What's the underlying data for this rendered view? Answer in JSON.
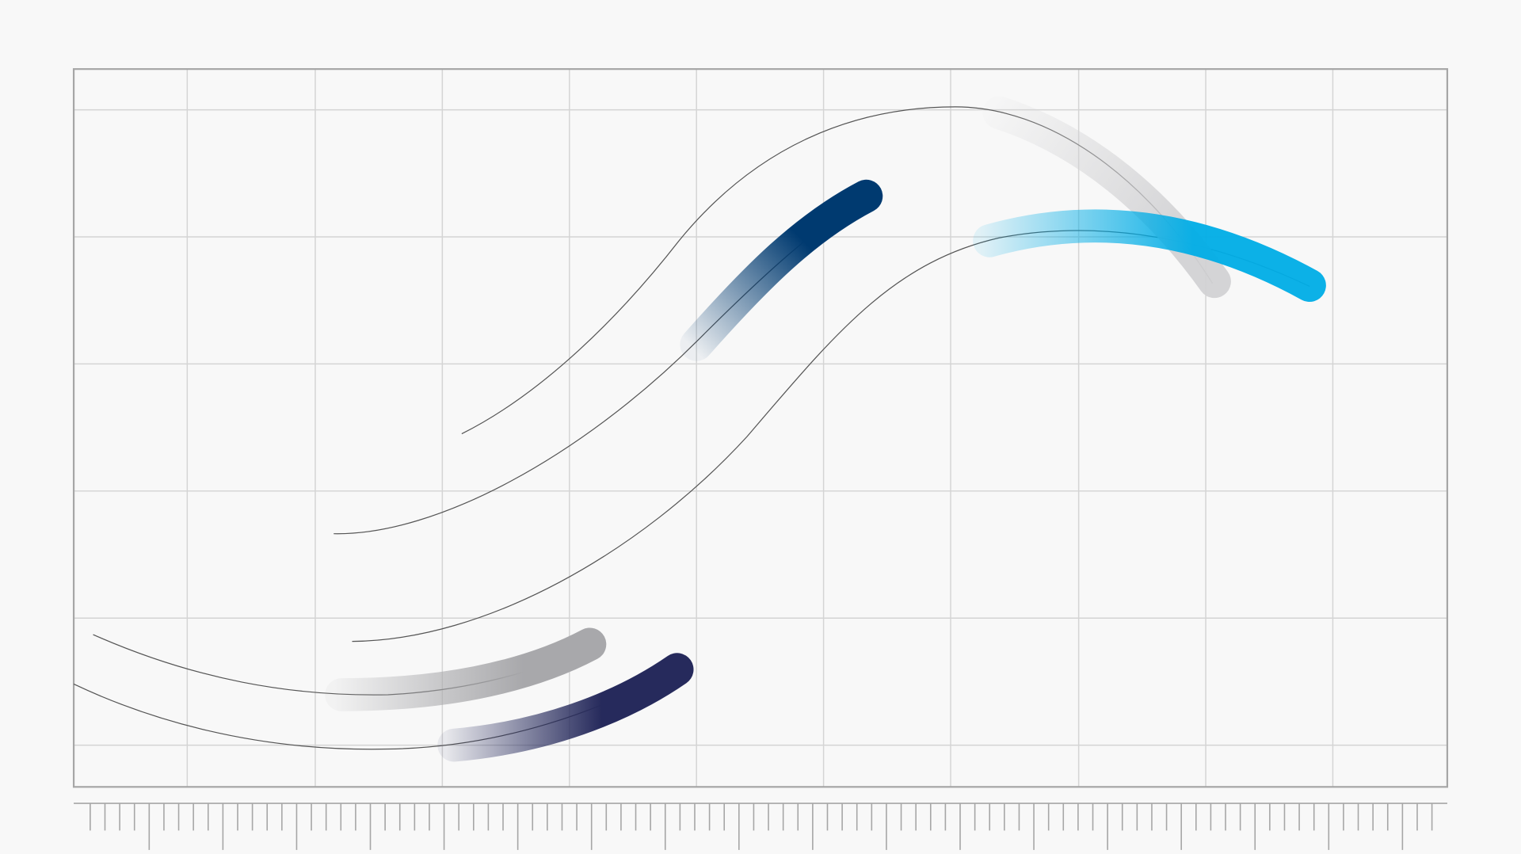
{
  "colors": {
    "background": "#f8f8f8",
    "grid": "#d4d4d4",
    "frame": "#a6a6a6",
    "thin_curve": "#555555",
    "dark_blue": "#003a70",
    "cyan": "#00ade6",
    "light_gray": "#d2d2d4",
    "mid_gray": "#a8a8ab",
    "navy": "#262a5c"
  },
  "elements": {
    "ruler": "tick-ruler",
    "strokes": [
      "dark-blue-stroke",
      "cyan-stroke",
      "light-gray-stroke",
      "mid-gray-stroke",
      "navy-stroke"
    ]
  }
}
